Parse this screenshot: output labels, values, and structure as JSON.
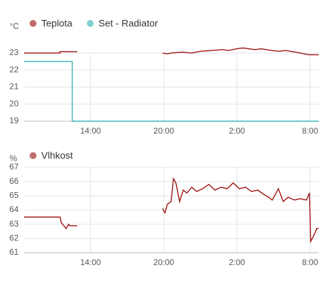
{
  "chart_data": [
    {
      "type": "line",
      "y_label": "°C",
      "xlim": [
        8.55,
        32.7
      ],
      "ylim": [
        19,
        23
      ],
      "xticks": [
        {
          "value": 14,
          "label": "14:00"
        },
        {
          "value": 20,
          "label": "20:00"
        },
        {
          "value": 26,
          "label": "2:00"
        },
        {
          "value": 32,
          "label": "8:00"
        }
      ],
      "yticks": [
        19,
        20,
        21,
        22,
        23
      ],
      "grid": true,
      "series": [
        {
          "name": "Teplota",
          "color": "#a31e1e",
          "x": [
            8.55,
            11.5,
            11.5,
            12.9,
            13.0,
            19.9,
            20.3,
            20.6,
            21.5,
            22.3,
            23.0,
            24.0,
            24.8,
            25.3,
            26.0,
            26.5,
            27.5,
            28.0,
            28.8,
            29.5,
            30.0,
            31.2,
            31.9,
            32.7
          ],
          "values": [
            23.0,
            23.0,
            23.08,
            23.08,
            null,
            23.0,
            22.95,
            23.0,
            23.05,
            23.0,
            23.1,
            23.15,
            23.2,
            23.15,
            23.25,
            23.3,
            23.2,
            23.25,
            23.15,
            23.1,
            23.15,
            23.0,
            22.9,
            22.9
          ]
        },
        {
          "name": "Set - Radiator",
          "color": "#3fb6ba",
          "x": [
            8.55,
            12.5,
            12.5,
            32.7
          ],
          "values": [
            22.5,
            22.5,
            19,
            19
          ]
        }
      ]
    },
    {
      "type": "line",
      "y_label": "%",
      "xlim": [
        8.55,
        32.7
      ],
      "ylim": [
        61,
        67
      ],
      "xticks": [
        {
          "value": 14,
          "label": "14:00"
        },
        {
          "value": 20,
          "label": "20:00"
        },
        {
          "value": 26,
          "label": "2:00"
        },
        {
          "value": 32,
          "label": "8:00"
        }
      ],
      "yticks": [
        61,
        62,
        63,
        64,
        65,
        66,
        67
      ],
      "grid": true,
      "series": [
        {
          "name": "Vlhkost",
          "color": "#a31e1e",
          "x": [
            8.55,
            11.5,
            11.6,
            11.8,
            12.0,
            12.2,
            12.3,
            12.9,
            13.0,
            19.9,
            20.1,
            20.3,
            20.6,
            20.8,
            21.0,
            21.3,
            21.6,
            21.9,
            22.3,
            22.7,
            23.2,
            23.7,
            24.2,
            24.7,
            25.2,
            25.7,
            26.2,
            26.7,
            27.2,
            27.7,
            28.2,
            28.6,
            28.9,
            29.4,
            29.8,
            30.2,
            30.7,
            31.2,
            31.7,
            31.95,
            32.05,
            32.3,
            32.55,
            32.7
          ],
          "values": [
            63.5,
            63.5,
            63.1,
            62.9,
            62.7,
            63.0,
            62.9,
            62.9,
            null,
            64.1,
            63.8,
            64.4,
            64.6,
            66.2,
            65.9,
            64.6,
            65.4,
            65.2,
            65.6,
            65.3,
            65.5,
            65.8,
            65.4,
            65.6,
            65.5,
            65.9,
            65.5,
            65.6,
            65.3,
            65.4,
            65.1,
            64.9,
            64.7,
            65.5,
            64.6,
            64.9,
            64.7,
            64.8,
            64.7,
            65.2,
            61.8,
            62.2,
            62.7,
            62.7
          ]
        }
      ]
    }
  ]
}
